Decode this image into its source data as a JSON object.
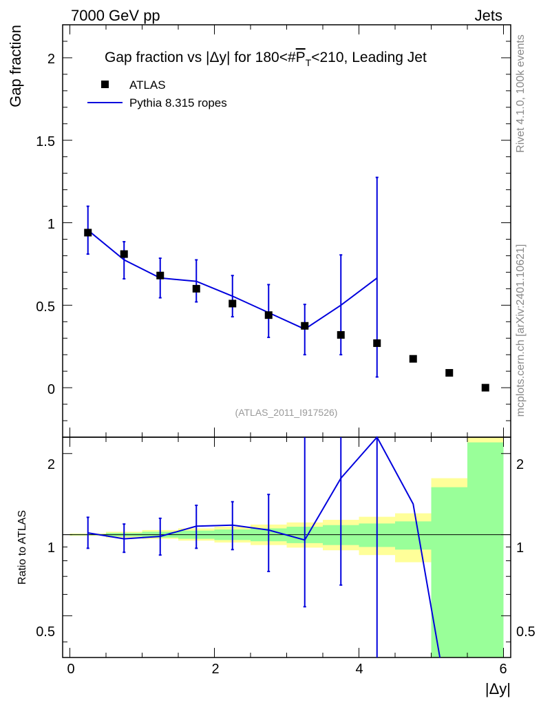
{
  "header": {
    "energy": "7000 GeV pp",
    "category": "Jets",
    "side_top": "Rivet 4.1.0,  100k events",
    "side_bottom": "mcplots.cern.ch [arXiv:2401.10621]",
    "analysis": "(ATLAS_2011_I917526)"
  },
  "chart_data": [
    {
      "type": "scatter",
      "title": "Gap fraction vs |Δy| for 180<#P̅T<210, Leading Jet",
      "title_parts": {
        "pre": "Gap fraction vs |Δy| for 180<#",
        "sym": "P",
        "sub": "T",
        "post": "<210, Leading Jet"
      },
      "ylabel": "Gap fraction",
      "xlim": [
        -0.1,
        6.1
      ],
      "ylim": [
        -0.3,
        2.2
      ],
      "yticks": [
        0,
        0.5,
        1,
        1.5,
        2
      ],
      "ytick_labels": [
        "0",
        "0.5",
        "1",
        "1.5",
        "2"
      ],
      "legend": {
        "position": "top-left",
        "entries": [
          "ATLAS",
          "Pythia 8.315 ropes"
        ]
      },
      "series": [
        {
          "name": "ATLAS",
          "style": "markers",
          "color": "#000000",
          "x": [
            0.25,
            0.75,
            1.25,
            1.75,
            2.25,
            2.75,
            3.25,
            3.75,
            4.25,
            4.75,
            5.25,
            5.75
          ],
          "y": [
            0.94,
            0.81,
            0.68,
            0.6,
            0.51,
            0.44,
            0.375,
            0.32,
            0.27,
            0.175,
            0.09,
            0.0
          ]
        },
        {
          "name": "Pythia 8.315 ropes",
          "style": "line",
          "color": "#0000dd",
          "x": [
            0.25,
            0.75,
            1.25,
            1.75,
            2.25,
            2.75,
            3.25,
            3.75,
            4.25
          ],
          "y": [
            0.955,
            0.775,
            0.665,
            0.645,
            0.555,
            0.455,
            0.355,
            0.5,
            0.665
          ],
          "err_low": [
            0.81,
            0.66,
            0.545,
            0.52,
            0.43,
            0.305,
            0.2,
            0.2,
            0.065
          ],
          "err_high": [
            1.1,
            0.885,
            0.785,
            0.775,
            0.68,
            0.625,
            0.505,
            0.805,
            1.275
          ]
        }
      ]
    },
    {
      "type": "line",
      "ylabel": "Ratio to ATLAS",
      "xlabel": "|Δy|",
      "xlim": [
        -0.1,
        6.1
      ],
      "ylim": [
        0.35,
        2.3
      ],
      "yscale": "log",
      "yticks": [
        0.5,
        1,
        2
      ],
      "ytick_labels": [
        "0.5",
        "1",
        "2"
      ],
      "xticks": [
        0,
        2,
        4,
        6
      ],
      "xtick_labels": [
        "0",
        "2",
        "4",
        "6"
      ],
      "bands": {
        "bin_edges": [
          0.0,
          0.5,
          1.0,
          1.5,
          2.0,
          2.5,
          3.0,
          3.5,
          4.0,
          4.5,
          5.0,
          5.5
        ],
        "green_low": [
          0.995,
          0.985,
          0.975,
          0.965,
          0.955,
          0.945,
          0.93,
          0.915,
          0.9,
          0.88,
          0.35,
          0.35
        ],
        "green_high": [
          1.005,
          1.015,
          1.025,
          1.035,
          1.045,
          1.055,
          1.07,
          1.085,
          1.1,
          1.12,
          1.5,
          2.2
        ],
        "yellow_low": [
          0.99,
          0.975,
          0.965,
          0.95,
          0.935,
          0.915,
          0.895,
          0.875,
          0.84,
          0.79,
          0.35,
          0.35
        ],
        "yellow_high": [
          1.01,
          1.025,
          1.04,
          1.055,
          1.07,
          1.09,
          1.11,
          1.135,
          1.165,
          1.2,
          1.62,
          2.3
        ]
      },
      "series": [
        {
          "name": "Pythia 8.315 ropes",
          "color": "#0000dd",
          "x": [
            0.25,
            0.75,
            1.25,
            1.75,
            2.25,
            2.75,
            3.25,
            3.75,
            4.25,
            4.75,
            5.12
          ],
          "y": [
            1.015,
            0.965,
            0.985,
            1.075,
            1.085,
            1.04,
            0.955,
            1.62,
            2.3,
            1.3,
            0.35
          ],
          "err_low": [
            0.89,
            0.86,
            0.84,
            0.89,
            0.88,
            0.73,
            0.54,
            0.65,
            0.35,
            null,
            null
          ],
          "err_high": [
            1.16,
            1.095,
            1.15,
            1.285,
            1.325,
            1.41,
            2.3,
            2.3,
            2.3,
            null,
            null
          ]
        }
      ]
    }
  ]
}
